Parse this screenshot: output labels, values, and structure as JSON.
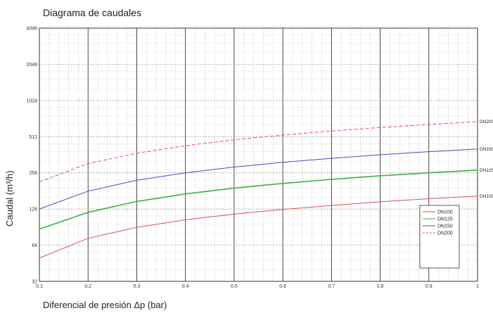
{
  "title": "Diagrama de caudales",
  "xlabel": "Diferencial de presión Δp (bar)",
  "ylabel": "Caudal (m³/h)",
  "chart_data": {
    "type": "line",
    "title": "Diagrama de caudales",
    "xlabel": "Diferencial de presión Δp (bar)",
    "ylabel": "Caudal (m³/h)",
    "y_scale": "log2",
    "xlim": [
      0.1,
      1
    ],
    "ylim": [
      32,
      4096
    ],
    "grid": true,
    "legend_position": "lower-right",
    "x_ticks": [
      "0.1",
      "0.2",
      "0.3",
      "0.4",
      "0.5",
      "0.6",
      "0.7",
      "0.8",
      "0.9",
      "1"
    ],
    "y_ticks": [
      "4096",
      "2048",
      "1024",
      "512",
      "256",
      "128",
      "64",
      "32"
    ],
    "x": [
      0.1,
      0.2,
      0.3,
      0.4,
      0.5,
      0.6,
      0.7,
      0.8,
      0.9,
      1.0
    ],
    "series": [
      {
        "name": "DN100",
        "color": "#e05050",
        "dash": "solid",
        "values": [
          50,
          73,
          90,
          104,
          116,
          127,
          137,
          147,
          156,
          164
        ]
      },
      {
        "name": "DN125",
        "color": "#40b040",
        "dash": "solid",
        "values": [
          87,
          120,
          148,
          171,
          191,
          209,
          226,
          242,
          256,
          270
        ]
      },
      {
        "name": "DN150",
        "color": "#4848c0",
        "dash": "solid",
        "values": [
          128,
          180,
          222,
          256,
          286,
          313,
          338,
          362,
          384,
          404
        ]
      },
      {
        "name": "DN200",
        "color": "#e05050",
        "dash": "dashed",
        "values": [
          215,
          305,
          373,
          431,
          482,
          528,
          570,
          610,
          647,
          682
        ]
      }
    ],
    "end_labels": [
      "DN200",
      "DN150",
      "DN125",
      "DN100"
    ]
  }
}
